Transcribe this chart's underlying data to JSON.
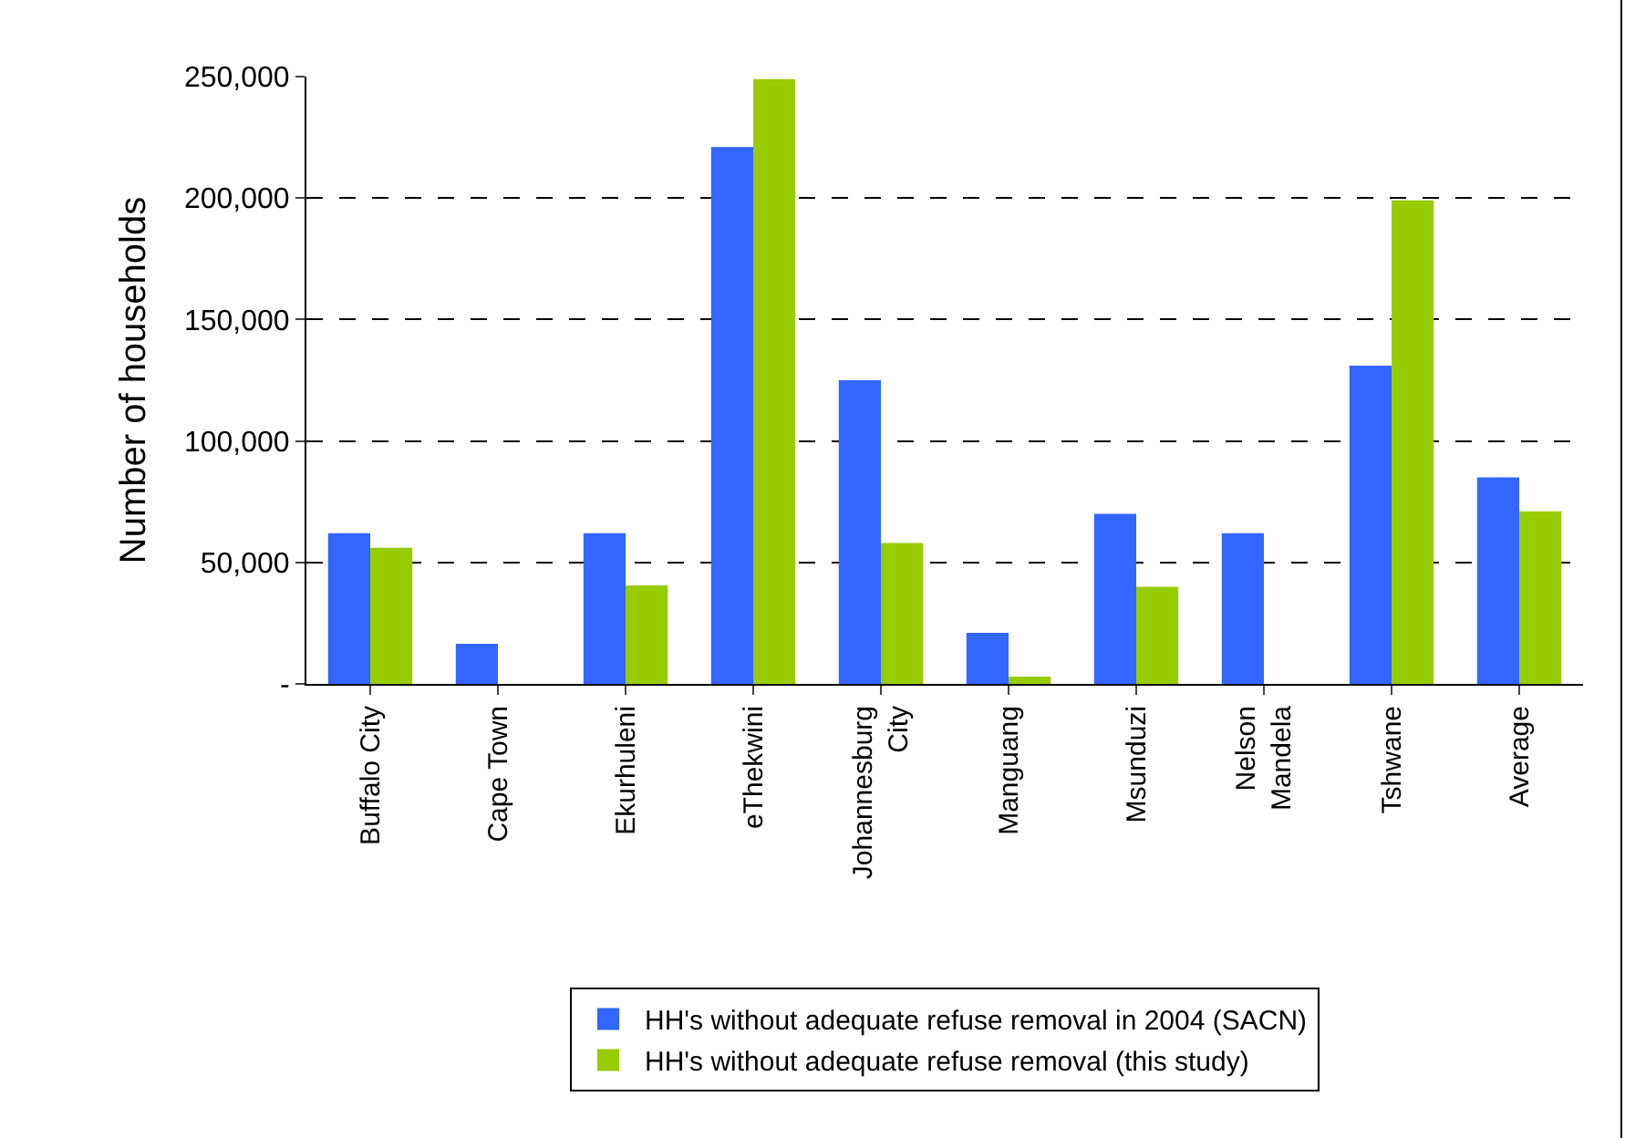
{
  "chart_data": {
    "type": "bar",
    "ylabel": "Number of households",
    "categories": [
      "Buffalo City",
      "Cape Town",
      "Ekurhuleni",
      "eThekwini",
      "Johannesburg City",
      "Manguang",
      "Msunduzi",
      "Nelson Mandela",
      "Tshwane",
      "Average"
    ],
    "series": [
      {
        "name": "HH's without adequate refuse removal in 2004 (SACN)",
        "color": "#3366ff",
        "values": [
          62000,
          16500,
          62000,
          221000,
          125000,
          21000,
          70000,
          62000,
          131000,
          85000
        ]
      },
      {
        "name": "HH's without adequate refuse removal (this study)",
        "color": "#99cc00",
        "values": [
          56000,
          null,
          40500,
          249000,
          58000,
          3000,
          40000,
          null,
          199000,
          71000
        ]
      }
    ],
    "ylim": [
      0,
      250000
    ],
    "yticks": [
      {
        "value": 0,
        "label": "-"
      },
      {
        "value": 50000,
        "label": "50,000"
      },
      {
        "value": 100000,
        "label": "100,000"
      },
      {
        "value": 150000,
        "label": "150,000"
      },
      {
        "value": 200000,
        "label": "200,000"
      },
      {
        "value": 250000,
        "label": "250,000"
      }
    ],
    "grid": "y",
    "legend": "bottom"
  }
}
